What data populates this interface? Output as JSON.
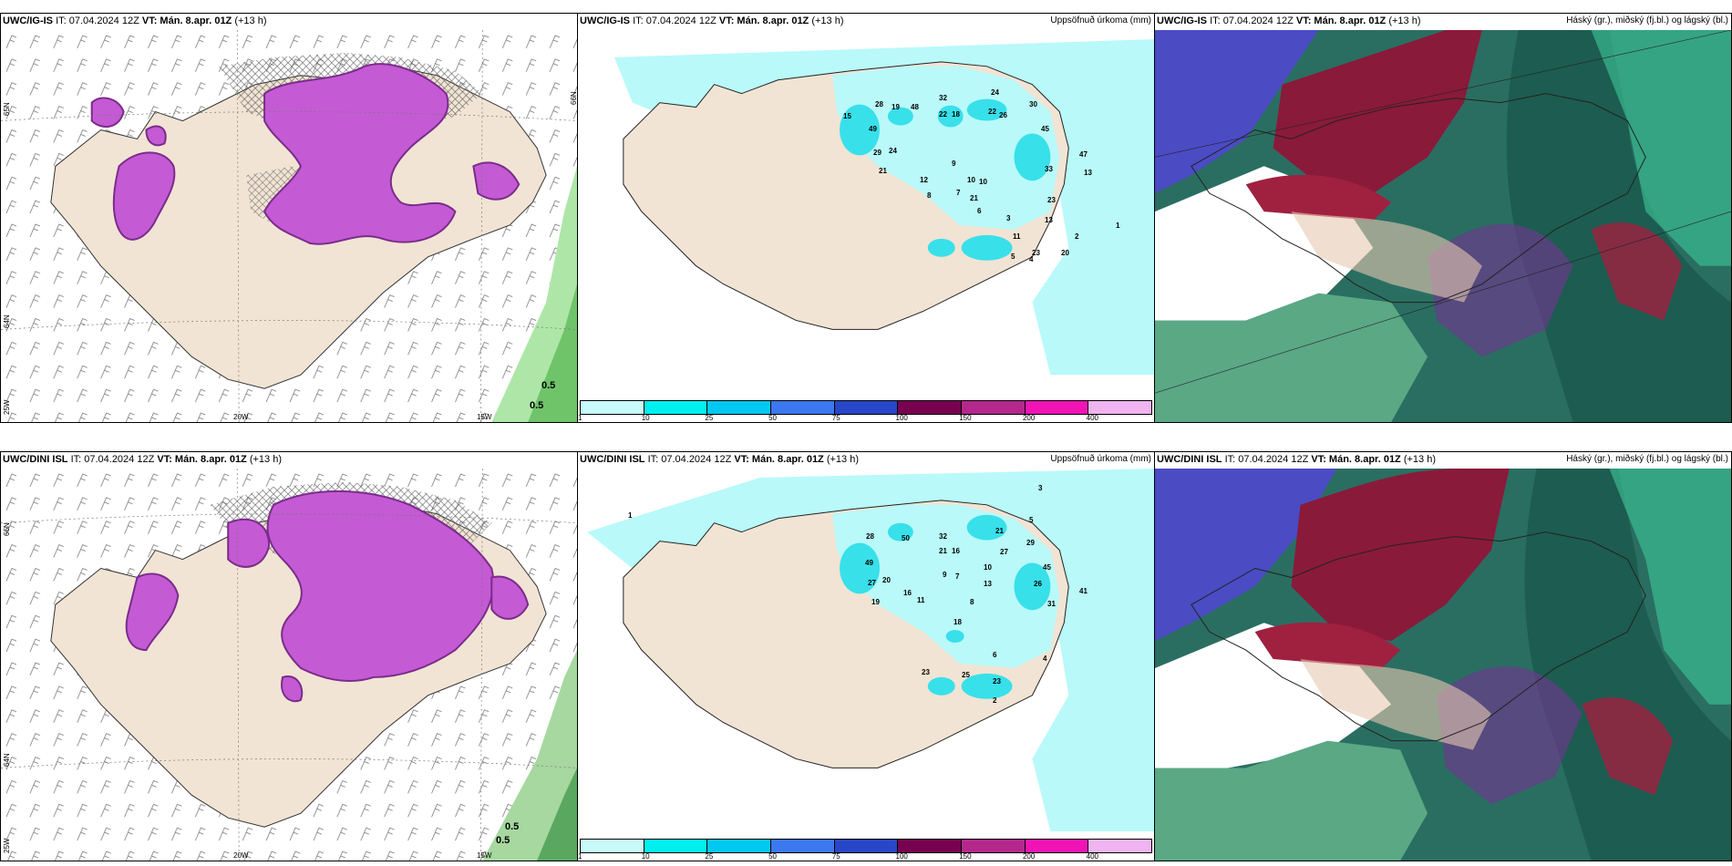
{
  "rows": [
    {
      "left": {
        "model": "UWC/IG-IS",
        "it": "IT: 07.04.2024 12Z",
        "vt": "VT: Mán. 8.apr. 01Z",
        "lead": "(+13 h)",
        "lon_labels": [
          "20W",
          "15W"
        ],
        "lat_labels": [
          "65N",
          "64N",
          "25W",
          "66N"
        ],
        "corner_values": [
          "0.5",
          "0.5"
        ]
      },
      "mid": {
        "model": "UWC/IG-IS",
        "it": "IT: 07.04.2024 12Z",
        "vt": "VT: Mán. 8.apr. 01Z",
        "lead": "(+13 h)",
        "right_title": "Uppsöfnuð úrkoma (mm)",
        "values": [
          "24",
          "30",
          "22",
          "26",
          "32",
          "22",
          "18",
          "48",
          "28",
          "19",
          "45",
          "47",
          "33",
          "23",
          "49",
          "24",
          "29",
          "21",
          "15",
          "12",
          "10",
          "9",
          "8",
          "7",
          "6",
          "5",
          "4",
          "3",
          "2",
          "1",
          "13",
          "11",
          "10",
          "21",
          "23",
          "20",
          "13"
        ]
      },
      "right": {
        "model": "UWC/IG-IS",
        "it": "IT: 07.04.2024 12Z",
        "vt": "VT: Mán. 8.apr. 01Z",
        "lead": "(+13 h)",
        "right_title": "Háský (gr.), miðský (fj.bl.) og lágský (bl.)"
      }
    },
    {
      "left": {
        "model": "UWC/DINI ISL",
        "it": "IT: 07.04.2024 12Z",
        "vt": "VT: Mán. 8.apr. 01Z",
        "lead": "(+13 h)",
        "lon_labels": [
          "20W",
          "15W"
        ],
        "lat_labels": [
          "66N",
          "64N",
          "25W"
        ],
        "corner_values": [
          "0.5",
          "0.5"
        ]
      },
      "mid": {
        "model": "UWC/DINI ISL",
        "it": "IT: 07.04.2024 12Z",
        "vt": "VT: Mán. 8.apr. 01Z",
        "lead": "(+13 h)",
        "right_title": "Uppsöfnuð úrkoma (mm)",
        "values": [
          "21",
          "29",
          "27",
          "45",
          "26",
          "31",
          "41",
          "32",
          "21",
          "16",
          "50",
          "28",
          "49",
          "27",
          "20",
          "19",
          "16",
          "11",
          "18",
          "23",
          "25",
          "23",
          "13",
          "10",
          "9",
          "8",
          "7",
          "6",
          "5",
          "4",
          "3",
          "2",
          "1"
        ]
      },
      "right": {
        "model": "UWC/DINI ISL",
        "it": "IT: 07.04.2024 12Z",
        "vt": "VT: Mán. 8.apr. 01Z",
        "lead": "(+13 h)",
        "right_title": "Háský (gr.), miðský (fj.bl.) og lágský (bl.)"
      }
    }
  ],
  "precip_legend": {
    "colors": [
      "#c8fafa",
      "#00f0f0",
      "#00c8f0",
      "#3c78f0",
      "#2846c8",
      "#780050",
      "#b4288c",
      "#f014b4",
      "#f0b4f0"
    ],
    "ticks": [
      "1",
      "10",
      "25",
      "50",
      "75",
      "100",
      "150",
      "200",
      "400"
    ]
  },
  "colors": {
    "land": "#f1e4d4",
    "sea_precip": "#b9f9f9",
    "snow": "#c45ad4",
    "snow_dark": "#7a2c8a",
    "cloud_high": "#1b6b5a",
    "cloud_mid": "#8a1a3a",
    "cloud_low": "#4d4dc8"
  }
}
